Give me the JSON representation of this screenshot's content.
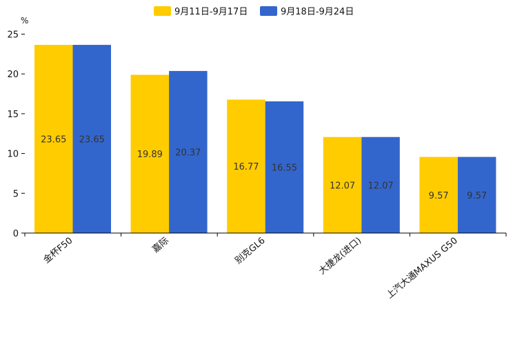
{
  "chart_data": {
    "type": "bar",
    "unit": "%",
    "categories": [
      "金杯F50",
      "嘉际",
      "别克GL6",
      "大捷龙(进口)",
      "上汽大通MAXUS G50"
    ],
    "series": [
      {
        "name": "9月11日-9月17日",
        "color": "#FFCC00",
        "values": [
          23.65,
          19.89,
          16.77,
          12.07,
          9.57
        ]
      },
      {
        "name": "9月18日-9月24日",
        "color": "#3366CC",
        "values": [
          23.65,
          20.37,
          16.55,
          12.07,
          9.57
        ]
      }
    ],
    "value_labels": [
      [
        "23.65",
        "19.89",
        "16.77",
        "12.07",
        "9.57"
      ],
      [
        "23.65",
        "20.37",
        "16.55",
        "12.07",
        "9.57"
      ]
    ],
    "ylim": [
      0,
      25
    ],
    "yticks": [
      "0",
      "5",
      "10",
      "15",
      "20",
      "25"
    ],
    "legend_position": "top-center",
    "grid": false
  }
}
